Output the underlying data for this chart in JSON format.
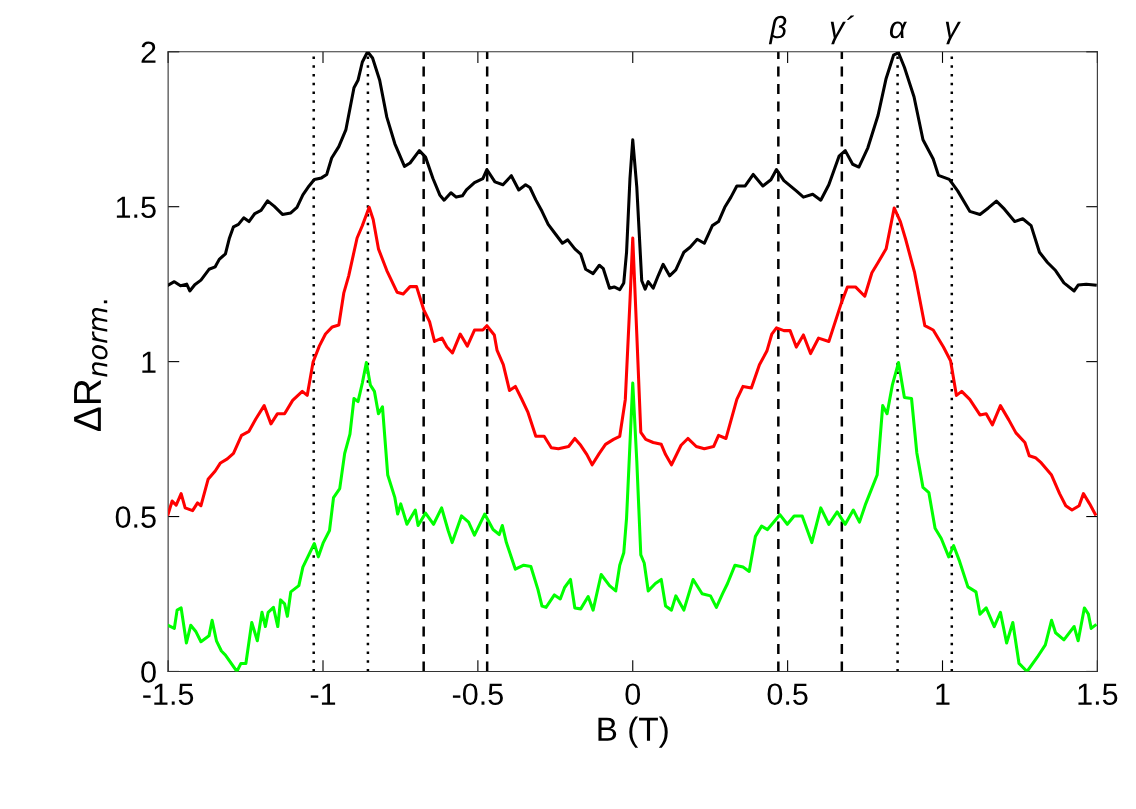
{
  "chart_data": {
    "type": "line",
    "xlabel": "B (T)",
    "ylabel": "ΔR$_{norm.}$",
    "xlim": [
      -1.5,
      1.5
    ],
    "ylim": [
      0,
      2
    ],
    "xticks": [
      -1.5,
      -1,
      -0.5,
      0,
      0.5,
      1,
      1.5
    ],
    "yticks": [
      0,
      0.5,
      1,
      1.5,
      2
    ],
    "grid": false,
    "marker": "none",
    "line_style": "solid",
    "ref_lines": [
      {
        "axis": "x",
        "value": -1.03,
        "label": null,
        "color": "#000000",
        "line_style": "dotted"
      },
      {
        "axis": "x",
        "value": -0.855,
        "label": null,
        "color": "#000000",
        "line_style": "dotted"
      },
      {
        "axis": "x",
        "value": -0.675,
        "label": null,
        "color": "#000000",
        "line_style": "dashed"
      },
      {
        "axis": "x",
        "value": -0.47,
        "label": null,
        "color": "#000000",
        "line_style": "dashed"
      },
      {
        "axis": "x",
        "value": 0.47,
        "label": "β",
        "color": "#000000",
        "line_style": "dashed"
      },
      {
        "axis": "x",
        "value": 0.675,
        "label": "γ´",
        "color": "#000000",
        "line_style": "dashed"
      },
      {
        "axis": "x",
        "value": 0.855,
        "label": "α",
        "color": "#000000",
        "line_style": "dotted"
      },
      {
        "axis": "x",
        "value": 1.03,
        "label": "γ",
        "color": "#000000",
        "line_style": "dotted"
      }
    ],
    "series": [
      {
        "color": "#000000",
        "x": [
          -1.5,
          -1.48,
          -1.46,
          -1.44,
          -1.43,
          -1.414,
          -1.394,
          -1.368,
          -1.348,
          -1.335,
          -1.315,
          -1.302,
          -1.289,
          -1.273,
          -1.256,
          -1.239,
          -1.22,
          -1.2,
          -1.179,
          -1.157,
          -1.131,
          -1.104,
          -1.084,
          -1.065,
          -1.045,
          -1.028,
          -1.005,
          -0.988,
          -0.972,
          -0.949,
          -0.926,
          -0.9,
          -0.887,
          -0.873,
          -0.856,
          -0.84,
          -0.817,
          -0.794,
          -0.768,
          -0.737,
          -0.719,
          -0.689,
          -0.669,
          -0.645,
          -0.623,
          -0.609,
          -0.587,
          -0.57,
          -0.55,
          -0.537,
          -0.511,
          -0.484,
          -0.471,
          -0.445,
          -0.419,
          -0.392,
          -0.368,
          -0.346,
          -0.332,
          -0.313,
          -0.293,
          -0.273,
          -0.249,
          -0.227,
          -0.21,
          -0.187,
          -0.168,
          -0.152,
          -0.128,
          -0.108,
          -0.095,
          -0.075,
          -0.06,
          -0.042,
          -0.029,
          -0.02,
          -0.009,
          0.0,
          0.013,
          0.029,
          0.04,
          0.05,
          0.066,
          0.082,
          0.098,
          0.119,
          0.139,
          0.165,
          0.185,
          0.208,
          0.231,
          0.257,
          0.277,
          0.297,
          0.317,
          0.336,
          0.363,
          0.389,
          0.42,
          0.446,
          0.464,
          0.488,
          0.528,
          0.551,
          0.581,
          0.607,
          0.633,
          0.666,
          0.686,
          0.71,
          0.73,
          0.759,
          0.792,
          0.818,
          0.842,
          0.858,
          0.877,
          0.908,
          0.937,
          0.97,
          0.987,
          1.022,
          1.049,
          1.088,
          1.121,
          1.148,
          1.174,
          1.2,
          1.233,
          1.259,
          1.286,
          1.313,
          1.339,
          1.365,
          1.392,
          1.425,
          1.438,
          1.464,
          1.493
        ],
        "values": [
          1.247,
          1.258,
          1.245,
          1.25,
          1.228,
          1.248,
          1.263,
          1.298,
          1.306,
          1.33,
          1.348,
          1.399,
          1.435,
          1.443,
          1.464,
          1.452,
          1.478,
          1.488,
          1.519,
          1.501,
          1.475,
          1.48,
          1.498,
          1.538,
          1.567,
          1.588,
          1.593,
          1.604,
          1.657,
          1.694,
          1.749,
          1.884,
          1.908,
          1.967,
          2.0,
          1.98,
          1.908,
          1.789,
          1.703,
          1.63,
          1.641,
          1.681,
          1.66,
          1.591,
          1.538,
          1.521,
          1.545,
          1.531,
          1.535,
          1.554,
          1.578,
          1.591,
          1.62,
          1.58,
          1.571,
          1.6,
          1.554,
          1.571,
          1.562,
          1.522,
          1.485,
          1.443,
          1.411,
          1.382,
          1.393,
          1.364,
          1.347,
          1.298,
          1.284,
          1.311,
          1.3,
          1.237,
          1.241,
          1.232,
          1.254,
          1.353,
          1.591,
          1.716,
          1.564,
          1.261,
          1.234,
          1.258,
          1.237,
          1.277,
          1.314,
          1.277,
          1.296,
          1.353,
          1.369,
          1.395,
          1.382,
          1.439,
          1.452,
          1.498,
          1.531,
          1.567,
          1.567,
          1.604,
          1.567,
          1.587,
          1.62,
          1.584,
          1.551,
          1.531,
          1.54,
          1.521,
          1.571,
          1.663,
          1.681,
          1.637,
          1.628,
          1.69,
          1.795,
          1.914,
          1.989,
          1.997,
          1.95,
          1.855,
          1.716,
          1.654,
          1.601,
          1.588,
          1.551,
          1.485,
          1.475,
          1.496,
          1.518,
          1.492,
          1.452,
          1.461,
          1.439,
          1.353,
          1.32,
          1.294,
          1.254,
          1.228,
          1.247,
          1.25,
          1.247
        ]
      },
      {
        "color": "#ff0000",
        "x": [
          -1.5,
          -1.487,
          -1.474,
          -1.458,
          -1.445,
          -1.421,
          -1.405,
          -1.394,
          -1.371,
          -1.348,
          -1.331,
          -1.309,
          -1.289,
          -1.263,
          -1.239,
          -1.217,
          -1.19,
          -1.168,
          -1.147,
          -1.124,
          -1.098,
          -1.067,
          -1.051,
          -1.032,
          -1.012,
          -0.992,
          -0.97,
          -0.949,
          -0.933,
          -0.917,
          -0.89,
          -0.873,
          -0.851,
          -0.838,
          -0.821,
          -0.794,
          -0.761,
          -0.741,
          -0.719,
          -0.698,
          -0.675,
          -0.656,
          -0.64,
          -0.616,
          -0.6,
          -0.582,
          -0.557,
          -0.534,
          -0.511,
          -0.484,
          -0.471,
          -0.447,
          -0.438,
          -0.418,
          -0.398,
          -0.379,
          -0.359,
          -0.339,
          -0.313,
          -0.286,
          -0.263,
          -0.24,
          -0.207,
          -0.187,
          -0.168,
          -0.148,
          -0.131,
          -0.108,
          -0.088,
          -0.062,
          -0.042,
          -0.024,
          -0.009,
          0.0,
          0.013,
          0.026,
          0.042,
          0.066,
          0.092,
          0.106,
          0.125,
          0.156,
          0.178,
          0.205,
          0.231,
          0.261,
          0.277,
          0.301,
          0.336,
          0.356,
          0.383,
          0.409,
          0.433,
          0.449,
          0.464,
          0.488,
          0.508,
          0.528,
          0.551,
          0.574,
          0.6,
          0.633,
          0.673,
          0.693,
          0.719,
          0.749,
          0.772,
          0.792,
          0.818,
          0.844,
          0.864,
          0.881,
          0.91,
          0.943,
          0.97,
          1.003,
          1.026,
          1.045,
          1.062,
          1.088,
          1.121,
          1.141,
          1.161,
          1.187,
          1.214,
          1.237,
          1.266,
          1.28,
          1.3,
          1.319,
          1.352,
          1.378,
          1.398,
          1.418,
          1.441,
          1.455,
          1.475,
          1.493
        ],
        "values": [
          0.508,
          0.55,
          0.537,
          0.574,
          0.528,
          0.519,
          0.544,
          0.535,
          0.62,
          0.647,
          0.673,
          0.686,
          0.704,
          0.762,
          0.775,
          0.815,
          0.858,
          0.799,
          0.832,
          0.832,
          0.875,
          0.904,
          0.891,
          0.999,
          1.05,
          1.089,
          1.112,
          1.118,
          1.221,
          1.277,
          1.399,
          1.439,
          1.498,
          1.459,
          1.364,
          1.294,
          1.224,
          1.218,
          1.242,
          1.242,
          1.168,
          1.129,
          1.065,
          1.076,
          1.047,
          1.028,
          1.089,
          1.05,
          1.102,
          1.102,
          1.116,
          1.086,
          1.036,
          0.99,
          0.907,
          0.92,
          0.88,
          0.838,
          0.759,
          0.759,
          0.722,
          0.719,
          0.726,
          0.752,
          0.73,
          0.7,
          0.667,
          0.704,
          0.733,
          0.749,
          0.759,
          0.878,
          1.195,
          1.399,
          1.089,
          0.772,
          0.749,
          0.739,
          0.733,
          0.7,
          0.667,
          0.73,
          0.752,
          0.726,
          0.719,
          0.726,
          0.762,
          0.752,
          0.878,
          0.92,
          0.915,
          0.99,
          1.034,
          1.089,
          1.109,
          1.1,
          1.1,
          1.047,
          1.086,
          1.026,
          1.076,
          1.065,
          1.188,
          1.241,
          1.241,
          1.211,
          1.287,
          1.32,
          1.364,
          1.496,
          1.452,
          1.395,
          1.287,
          1.116,
          1.102,
          1.047,
          1.003,
          0.891,
          0.904,
          0.878,
          0.828,
          0.832,
          0.796,
          0.858,
          0.812,
          0.77,
          0.739,
          0.696,
          0.69,
          0.673,
          0.634,
          0.574,
          0.535,
          0.521,
          0.535,
          0.574,
          0.541,
          0.508
        ]
      },
      {
        "color": "#00ff00",
        "x": [
          -1.5,
          -1.48,
          -1.471,
          -1.458,
          -1.441,
          -1.427,
          -1.41,
          -1.394,
          -1.368,
          -1.358,
          -1.344,
          -1.328,
          -1.315,
          -1.278,
          -1.265,
          -1.249,
          -1.23,
          -1.212,
          -1.197,
          -1.186,
          -1.177,
          -1.16,
          -1.146,
          -1.137,
          -1.124,
          -1.115,
          -1.104,
          -1.078,
          -1.065,
          -1.049,
          -1.028,
          -1.015,
          -0.999,
          -0.979,
          -0.966,
          -0.946,
          -0.93,
          -0.913,
          -0.9,
          -0.887,
          -0.873,
          -0.86,
          -0.847,
          -0.834,
          -0.821,
          -0.808,
          -0.791,
          -0.768,
          -0.759,
          -0.749,
          -0.729,
          -0.702,
          -0.693,
          -0.669,
          -0.643,
          -0.617,
          -0.596,
          -0.583,
          -0.553,
          -0.53,
          -0.511,
          -0.478,
          -0.451,
          -0.431,
          -0.421,
          -0.408,
          -0.379,
          -0.352,
          -0.329,
          -0.306,
          -0.293,
          -0.28,
          -0.253,
          -0.234,
          -0.22,
          -0.201,
          -0.187,
          -0.168,
          -0.144,
          -0.128,
          -0.102,
          -0.075,
          -0.055,
          -0.042,
          -0.029,
          -0.02,
          0.0,
          0.013,
          0.026,
          0.037,
          0.05,
          0.073,
          0.092,
          0.106,
          0.125,
          0.139,
          0.165,
          0.195,
          0.224,
          0.251,
          0.27,
          0.29,
          0.306,
          0.33,
          0.356,
          0.376,
          0.396,
          0.416,
          0.435,
          0.475,
          0.499,
          0.521,
          0.547,
          0.578,
          0.607,
          0.633,
          0.66,
          0.686,
          0.712,
          0.732,
          0.752,
          0.789,
          0.807,
          0.821,
          0.838,
          0.858,
          0.877,
          0.9,
          0.917,
          0.937,
          0.956,
          0.976,
          0.996,
          1.02,
          1.036,
          1.055,
          1.082,
          1.108,
          1.121,
          1.141,
          1.167,
          1.187,
          1.207,
          1.227,
          1.247,
          1.273,
          1.306,
          1.332,
          1.352,
          1.365,
          1.392,
          1.425,
          1.438,
          1.458,
          1.471,
          1.48,
          1.493
        ],
        "values": [
          0.149,
          0.139,
          0.198,
          0.205,
          0.092,
          0.149,
          0.128,
          0.096,
          0.115,
          0.165,
          0.099,
          0.066,
          0.053,
          0.0,
          0.026,
          0.026,
          0.158,
          0.099,
          0.191,
          0.145,
          0.191,
          0.207,
          0.145,
          0.231,
          0.218,
          0.178,
          0.257,
          0.277,
          0.337,
          0.37,
          0.413,
          0.37,
          0.416,
          0.455,
          0.561,
          0.59,
          0.704,
          0.766,
          0.881,
          0.871,
          0.931,
          0.997,
          0.924,
          0.904,
          0.832,
          0.854,
          0.634,
          0.561,
          0.508,
          0.541,
          0.475,
          0.521,
          0.471,
          0.511,
          0.475,
          0.528,
          0.455,
          0.416,
          0.502,
          0.482,
          0.44,
          0.508,
          0.458,
          0.442,
          0.471,
          0.416,
          0.33,
          0.343,
          0.339,
          0.264,
          0.211,
          0.207,
          0.247,
          0.234,
          0.271,
          0.297,
          0.205,
          0.202,
          0.242,
          0.198,
          0.313,
          0.277,
          0.26,
          0.343,
          0.383,
          0.495,
          0.931,
          0.68,
          0.376,
          0.35,
          0.26,
          0.284,
          0.297,
          0.211,
          0.198,
          0.244,
          0.198,
          0.297,
          0.251,
          0.244,
          0.207,
          0.251,
          0.284,
          0.343,
          0.337,
          0.323,
          0.436,
          0.469,
          0.458,
          0.506,
          0.475,
          0.502,
          0.502,
          0.416,
          0.528,
          0.475,
          0.515,
          0.475,
          0.521,
          0.482,
          0.541,
          0.634,
          0.858,
          0.832,
          0.924,
          0.997,
          0.884,
          0.881,
          0.706,
          0.594,
          0.577,
          0.462,
          0.429,
          0.37,
          0.406,
          0.356,
          0.273,
          0.257,
          0.185,
          0.205,
          0.145,
          0.191,
          0.092,
          0.158,
          0.026,
          0.0,
          0.046,
          0.086,
          0.165,
          0.125,
          0.102,
          0.145,
          0.099,
          0.205,
          0.185,
          0.139,
          0.149
        ]
      }
    ]
  }
}
